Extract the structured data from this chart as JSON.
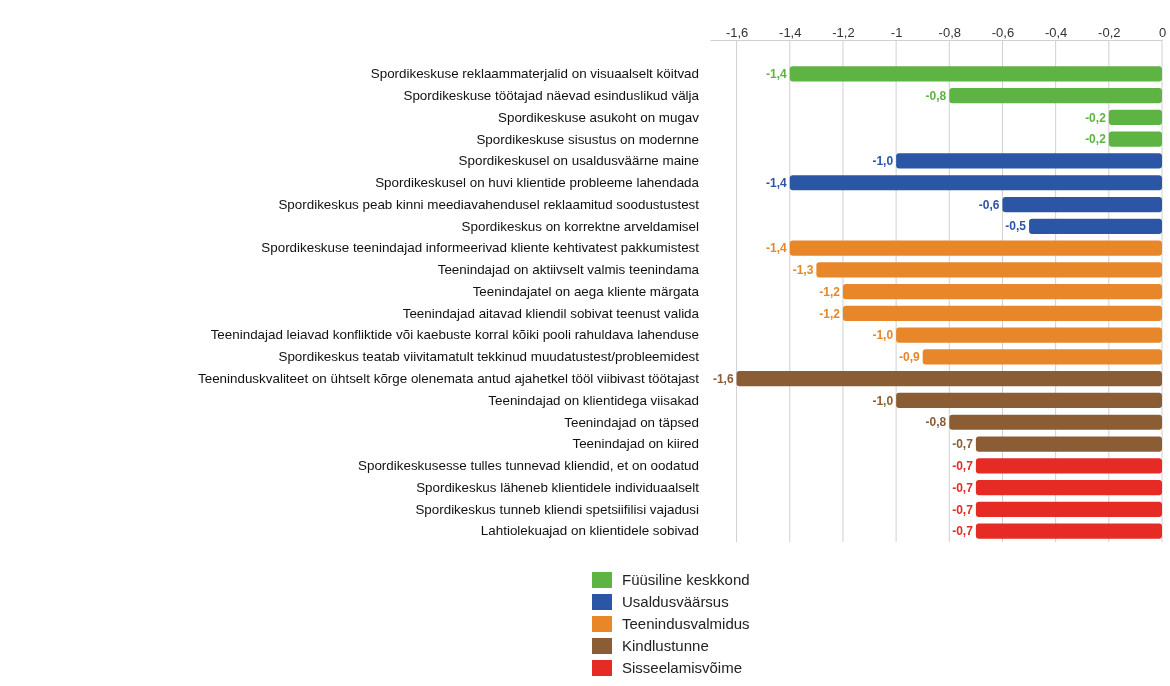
{
  "chart_data": {
    "type": "bar",
    "orientation": "horizontal",
    "categories": [
      "Spordikeskuse reklaammaterjalid on visuaalselt köitvad",
      "Spordikeskuse töötajad näevad esinduslikud välja",
      "Spordikeskuse asukoht on mugav",
      "Spordikeskuse sisustus on modernne",
      "Spordikeskusel on usaldusväärne maine",
      "Spordikeskusel on huvi klientide probleeme lahendada",
      "Spordikeskus peab kinni meediavahendusel reklaamitud soodustustest",
      "Spordikeskus on korrektne arveldamisel",
      "Spordikeskuse teenindajad informeerivad kliente kehtivatest pakkumistest",
      "Teenindajad on aktiivselt valmis teenindama",
      "Teenindajatel on aega kliente märgata",
      "Teenindajad aitavad kliendil sobivat teenust valida",
      "Teenindajad leiavad konfliktide või kaebuste korral kõiki pooli rahuldava lahenduse",
      "Spordikeskus teatab viivitamatult tekkinud muudatustest/probleemidest",
      "Teeninduskvaliteet on ühtselt kõrge olenemata antud ajahetkel tööl viibivast töötajast",
      "Teenindajad on klientidega viisakad",
      "Teenindajad on täpsed",
      "Teenindajad on kiired",
      "Spordikeskusesse tulles tunnevad kliendid, et on oodatud",
      "Spordikeskus läheneb klientidele individuaalselt",
      "Spordikeskus tunneb kliendi spetsiifilisi vajadusi",
      "Lahtiolekuajad on klientidele sobivad"
    ],
    "series": [
      {
        "name": "Füüsiline keskkond",
        "color": "#5db443",
        "values": [
          -1.4,
          -0.8,
          -0.2,
          -0.2,
          null,
          null,
          null,
          null,
          null,
          null,
          null,
          null,
          null,
          null,
          null,
          null,
          null,
          null,
          null,
          null,
          null,
          null
        ],
        "value_labels": [
          "-1,4",
          "-0,8",
          "-0,2",
          "-0,2",
          null,
          null,
          null,
          null,
          null,
          null,
          null,
          null,
          null,
          null,
          null,
          null,
          null,
          null,
          null,
          null,
          null,
          null
        ]
      },
      {
        "name": "Usaldusväärsus",
        "color": "#2b56a6",
        "values": [
          null,
          null,
          null,
          null,
          -1.0,
          -1.4,
          -0.6,
          -0.5,
          null,
          null,
          null,
          null,
          null,
          null,
          null,
          null,
          null,
          null,
          null,
          null,
          null,
          null
        ],
        "value_labels": [
          null,
          null,
          null,
          null,
          "-1,0",
          "-1,4",
          "-0,6",
          "-0,5",
          null,
          null,
          null,
          null,
          null,
          null,
          null,
          null,
          null,
          null,
          null,
          null,
          null,
          null
        ]
      },
      {
        "name": "Teenindusvalmidus",
        "color": "#e8862a",
        "values": [
          null,
          null,
          null,
          null,
          null,
          null,
          null,
          null,
          -1.4,
          -1.3,
          -1.2,
          -1.2,
          -1.0,
          -0.9,
          null,
          null,
          null,
          null,
          null,
          null,
          null,
          null
        ],
        "value_labels": [
          null,
          null,
          null,
          null,
          null,
          null,
          null,
          null,
          "-1,4",
          "-1,3",
          "-1,2",
          "-1,2",
          "-1,0",
          "-0,9",
          null,
          null,
          null,
          null,
          null,
          null,
          null,
          null
        ]
      },
      {
        "name": "Kindlustunne",
        "color": "#8a5d35",
        "values": [
          null,
          null,
          null,
          null,
          null,
          null,
          null,
          null,
          null,
          null,
          null,
          null,
          null,
          null,
          -1.6,
          -1.0,
          -0.8,
          -0.7,
          null,
          null,
          null,
          null
        ],
        "value_labels": [
          null,
          null,
          null,
          null,
          null,
          null,
          null,
          null,
          null,
          null,
          null,
          null,
          null,
          null,
          "-1,6",
          "-1,0",
          "-0,8",
          "-0,7",
          null,
          null,
          null,
          null
        ]
      },
      {
        "name": "Sisseelamisvõime",
        "color": "#e52b24",
        "values": [
          null,
          null,
          null,
          null,
          null,
          null,
          null,
          null,
          null,
          null,
          null,
          null,
          null,
          null,
          null,
          null,
          null,
          null,
          -0.7,
          -0.7,
          -0.7,
          -0.7
        ],
        "value_labels": [
          null,
          null,
          null,
          null,
          null,
          null,
          null,
          null,
          null,
          null,
          null,
          null,
          null,
          null,
          null,
          null,
          null,
          null,
          "-0,7",
          "-0,7",
          "-0,7",
          "-0,7"
        ]
      }
    ],
    "xlim": [
      -1.7,
      0
    ],
    "xticks": [
      {
        "value": -1.6,
        "label": "-1,6"
      },
      {
        "value": -1.4,
        "label": "-1,4"
      },
      {
        "value": -1.2,
        "label": "-1,2"
      },
      {
        "value": -1,
        "label": "-1"
      },
      {
        "value": -0.8,
        "label": "-0,8"
      },
      {
        "value": -0.6,
        "label": "-0,6"
      },
      {
        "value": -0.4,
        "label": "-0,4"
      },
      {
        "value": -0.2,
        "label": "-0,2"
      },
      0
    ],
    "grid": "x",
    "legend": "bottom"
  }
}
